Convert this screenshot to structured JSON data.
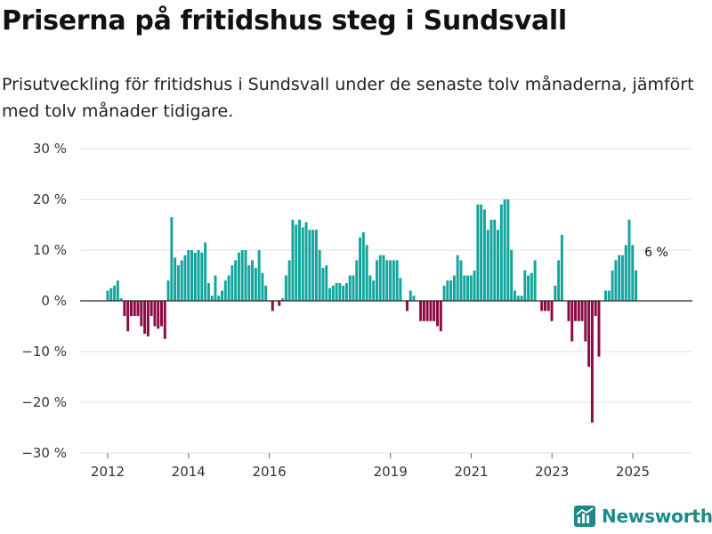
{
  "title": "Priserna på fritidshus steg i Sundsvall",
  "subtitle": "Prisutveckling för fritidshus i Sundsvall under de senaste tolv månaderna, jämfört med tolv månader tidigare.",
  "brand": "Newsworthy",
  "colors": {
    "positive": "#13a59c",
    "negative": "#8c0a43",
    "grid": "#e0e0e0",
    "zero": "#222222",
    "brand": "#1e8a86"
  },
  "chart_data": {
    "type": "bar",
    "title": "Priserna på fritidshus steg i Sundsvall",
    "xlabel": "",
    "ylabel": "",
    "ylim": [
      -30,
      30
    ],
    "y_ticks": [
      30,
      20,
      10,
      0,
      -10,
      -20,
      -30
    ],
    "y_tick_labels": [
      "30 %",
      "20 %",
      "10 %",
      "0 %",
      "−10 %",
      "−20 %",
      "−30 %"
    ],
    "x_ticks": [
      2012,
      2014,
      2016,
      2019,
      2021,
      2023,
      2025
    ],
    "x_tick_labels": [
      "2012",
      "2014",
      "2016",
      "2019",
      "2021",
      "2023",
      "2025"
    ],
    "x_start": 2012.0,
    "step": 0.0833,
    "annotation": {
      "text": "6 %",
      "index": 162
    },
    "values": [
      2,
      2.5,
      3,
      4,
      0.5,
      -3,
      -6,
      -3,
      -3,
      -3,
      -5,
      -6.5,
      -7,
      -3,
      -5,
      -5.5,
      -5,
      -7.5,
      4,
      16.5,
      8.5,
      7,
      8,
      9,
      10,
      10,
      9.5,
      10,
      9.5,
      11.5,
      3.5,
      1,
      5,
      1,
      2,
      4,
      5,
      7,
      8,
      9.5,
      10,
      10,
      7,
      8,
      6.5,
      10,
      5.5,
      3,
      0,
      -2,
      0,
      -1,
      0.5,
      5,
      8,
      16,
      15,
      16,
      14.5,
      15.5,
      14,
      14,
      14,
      10,
      6.5,
      7,
      2.5,
      3,
      3.5,
      3.5,
      3,
      3.5,
      5,
      5,
      8,
      12.5,
      13.5,
      11,
      5,
      4,
      8,
      9,
      9,
      8,
      8,
      8,
      8,
      4.5,
      0,
      -2,
      2,
      1,
      0,
      -4,
      -4,
      -4,
      -4,
      -4,
      -5,
      -6,
      3,
      4,
      4,
      5,
      9,
      8,
      5,
      5,
      5,
      6,
      19,
      19,
      18,
      14,
      16,
      16,
      14,
      19,
      20,
      20,
      10,
      2,
      1,
      1,
      6,
      5,
      5.5,
      8,
      0,
      -2,
      -2,
      -2,
      -4,
      3,
      8,
      13,
      0,
      -4,
      -8,
      -4,
      -4,
      -4,
      -8,
      -13,
      -24,
      -3,
      -11,
      0,
      2,
      2,
      6,
      8,
      9,
      9,
      11,
      16,
      11,
      6
    ]
  }
}
